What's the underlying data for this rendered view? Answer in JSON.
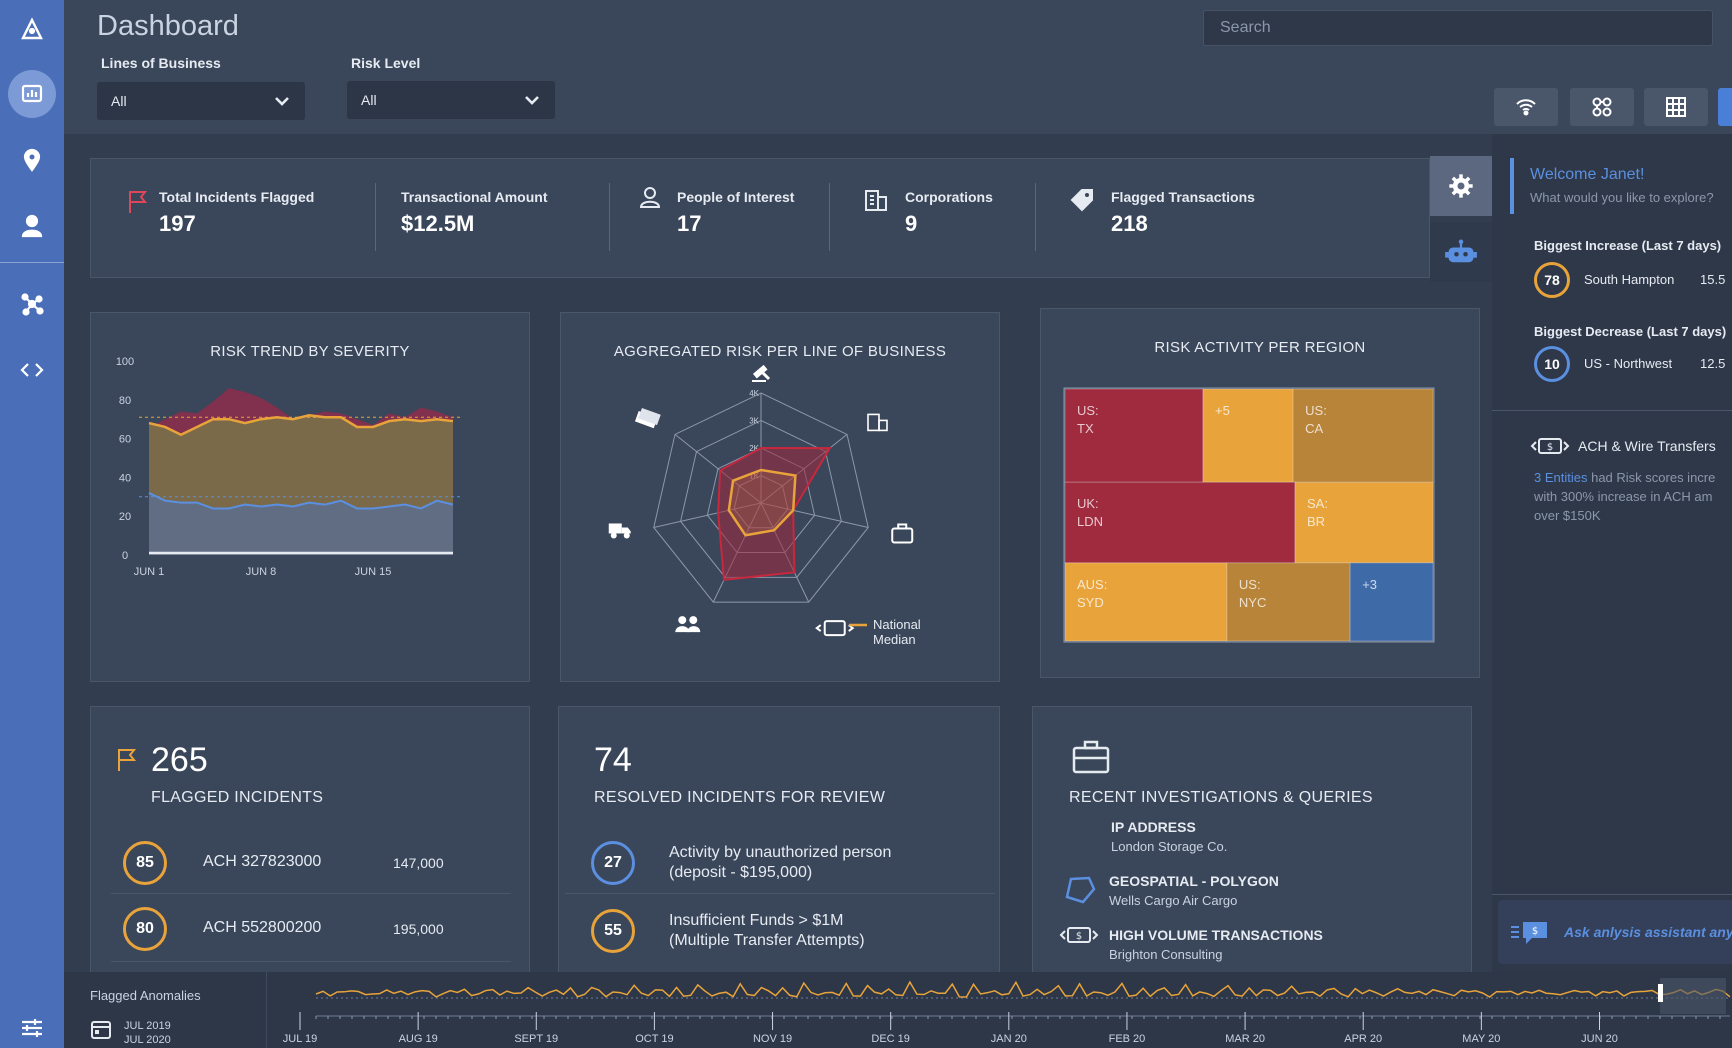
{
  "header": {
    "title": "Dashboard",
    "search_placeholder": "Search",
    "filters": [
      {
        "label": "Lines of Business",
        "value": "All"
      },
      {
        "label": "Risk Level",
        "value": "All"
      }
    ]
  },
  "nav_icons": [
    "logo-icon",
    "dashboard-icon",
    "location-icon",
    "person-icon",
    "network-icon",
    "code-icon",
    "filters-icon"
  ],
  "toolbar_icons": [
    "wifi-icon",
    "graph-icon",
    "grid-icon"
  ],
  "kpis": [
    {
      "label": "Total Incidents Flagged",
      "value": "197",
      "icon": "flag-icon"
    },
    {
      "label": "Transactional Amount",
      "value": "$12.5M"
    },
    {
      "label": "People of Interest",
      "value": "17",
      "icon": "person-icon"
    },
    {
      "label": "Corporations",
      "value": "9",
      "icon": "building-icon"
    },
    {
      "label": "Flagged Transactions",
      "value": "218",
      "icon": "tag-icon"
    }
  ],
  "charts": {
    "risk_trend": {
      "title": "RISK  TREND BY SEVERITY"
    },
    "radar": {
      "title": "AGGREGATED RISK PER LINE OF BUSINESS",
      "legend": "National Median"
    },
    "treemap": {
      "title": "RISK ACTIVITY PER REGION"
    }
  },
  "chart_data": [
    {
      "type": "area",
      "title": "RISK  TREND BY SEVERITY",
      "x_ticks": [
        "JUN 1",
        "JUN 8",
        "JUN 15"
      ],
      "y_ticks": [
        "100",
        "80",
        "60",
        "40",
        "20",
        "0"
      ],
      "ylim": [
        0,
        100
      ],
      "x": [
        1,
        2,
        3,
        4,
        5,
        6,
        7,
        8,
        9,
        10,
        11,
        12,
        13,
        14,
        15,
        16,
        17,
        18,
        19,
        20
      ],
      "series": [
        {
          "values": [
            66,
            70,
            74,
            73,
            79,
            86,
            84,
            81,
            76,
            70,
            72,
            74,
            73,
            70,
            67,
            73,
            71,
            76,
            74,
            71
          ],
          "color": "#8a2d4c"
        },
        {
          "values": [
            68,
            66,
            62,
            66,
            70,
            70,
            68,
            70,
            71,
            70,
            72,
            71,
            71,
            66,
            66,
            69,
            70,
            69,
            70,
            69
          ],
          "color": "#e8a33a"
        },
        {
          "values": [
            32,
            28,
            27,
            27,
            24,
            24,
            26,
            25,
            26,
            25,
            27,
            26,
            28,
            24,
            24,
            25,
            26,
            24,
            28,
            26
          ],
          "color": "#6f7e99"
        },
        {
          "values": [
            1,
            1,
            1,
            1,
            1,
            1,
            1,
            1,
            1,
            1,
            1,
            1,
            1,
            1,
            1,
            1,
            1,
            1,
            1,
            1
          ],
          "color": "#e6ebf2"
        }
      ],
      "reference_lines": [
        71,
        30
      ]
    },
    {
      "type": "radar",
      "title": "AGGREGATED RISK PER LINE OF BUSINESS",
      "axes_icons": [
        "gavel-icon",
        "building-icon",
        "briefcase-icon",
        "money-transfer-icon",
        "people-icon",
        "truck-icon",
        "cash-icon"
      ],
      "ring_labels": [
        "1K",
        "2K",
        "3K",
        "4K"
      ],
      "series": [
        {
          "values": [
            2.0,
            3.2,
            1.2,
            2.8,
            3.1,
            1.6,
            1.9
          ],
          "color": "#c8283e"
        },
        {
          "name": "National Median",
          "values": [
            1.2,
            1.6,
            1.2,
            1.1,
            1.3,
            1.2,
            1.3
          ],
          "color": "#e8a33a"
        }
      ]
    },
    {
      "type": "heatmap",
      "title": "RISK ACTIVITY PER REGION",
      "cells": [
        {
          "label": "US:\nTX",
          "color": "#a02a3e"
        },
        {
          "label": "+5",
          "color": "#e8a33a"
        },
        {
          "label": "US:\nCA",
          "color": "#b8843a"
        },
        {
          "label": "UK:\nLDN",
          "color": "#a02a3e"
        },
        {
          "label": "SA:\nBR",
          "color": "#e8a33a"
        },
        {
          "label": "AUS:\nSYD",
          "color": "#e8a33a"
        },
        {
          "label": "US:\nNYC",
          "color": "#b8843a"
        },
        {
          "label": "+3",
          "color": "#3f6aa8"
        }
      ]
    }
  ],
  "flagged": {
    "count": "265",
    "title": "FLAGGED INCIDENTS",
    "rows": [
      {
        "score": "85",
        "name": "ACH 327823000",
        "amount": "147,000"
      },
      {
        "score": "80",
        "name": "ACH 552800200",
        "amount": "195,000"
      }
    ]
  },
  "resolved": {
    "count": "74",
    "title": "RESOLVED  INCIDENTS FOR  REVIEW",
    "rows": [
      {
        "score": "27",
        "line1": "Activity by unauthorized person",
        "line2": "(deposit - $195,000)"
      },
      {
        "score": "55",
        "line1": "Insufficient Funds  > $1M",
        "line2": "(Multiple Transfer Attempts)"
      }
    ]
  },
  "investigations": {
    "title": "RECENT INVESTIGATIONS & QUERIES",
    "items": [
      {
        "title": "IP ADDRESS",
        "sub": "London Storage Co."
      },
      {
        "title": "GEOSPATIAL - POLYGON",
        "sub": "Wells Cargo Air Cargo"
      },
      {
        "title": "HIGH VOLUME TRANSACTIONS",
        "sub": "Brighton Consulting"
      }
    ]
  },
  "assistant": {
    "welcome": "Welcome Janet!",
    "prompt": "What would you like to explore?",
    "increase": {
      "label": "Biggest Increase (Last 7 days)",
      "score": "78",
      "name": "South Hampton",
      "value": "15.5"
    },
    "decrease": {
      "label": "Biggest Decrease (Last 7 days)",
      "score": "10",
      "name": "US - Northwest",
      "value": "12.5"
    },
    "ach": {
      "title": "ACH & Wire Transfers",
      "link": "3 Entities",
      "text1": " had Risk scores incre",
      "text2": "with 300% increase in ACH am",
      "text3": "over $150K"
    },
    "ask": "Ask anlysis assistant any"
  },
  "timeline": {
    "label": "Flagged Anomalies",
    "range_start": "JUL 2019",
    "range_end": "JUL 2020",
    "months": [
      "JUL 19",
      "AUG 19",
      "SEPT 19",
      "OCT 19",
      "NOV 19",
      "DEC 19",
      "JAN 20",
      "FEB 20",
      "MAR 20",
      "APR 20",
      "MAY 20",
      "JUN 20"
    ]
  },
  "colors": {
    "accent": "#4a6fb8",
    "warning": "#e8a33a",
    "danger": "#a02a3e"
  }
}
